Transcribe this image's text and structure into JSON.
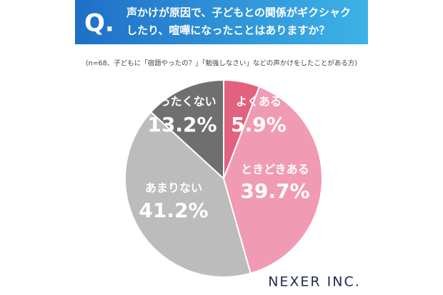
{
  "chart_data": {
    "type": "pie",
    "badge": "Q.",
    "title": [
      "声かけが原因で、子どもとの関係がギクシャク",
      "したり、喧嘩になったことはありますか？"
    ],
    "subtitle": "(n=68、子どもに「宿題やったの？」「勉強しなさい」などの声かけをしたことがある方)",
    "categories": [
      "よくある",
      "ときどきある",
      "あまりない",
      "まったくない"
    ],
    "values": [
      5.9,
      39.7,
      41.2,
      13.2
    ],
    "value_labels": [
      "5.9%",
      "39.7%",
      "41.2%",
      "13.2%"
    ],
    "colors": [
      "#e2617f",
      "#f09bb3",
      "#bcbcbc",
      "#6f6f6f"
    ],
    "logo": "NEXER INC."
  }
}
